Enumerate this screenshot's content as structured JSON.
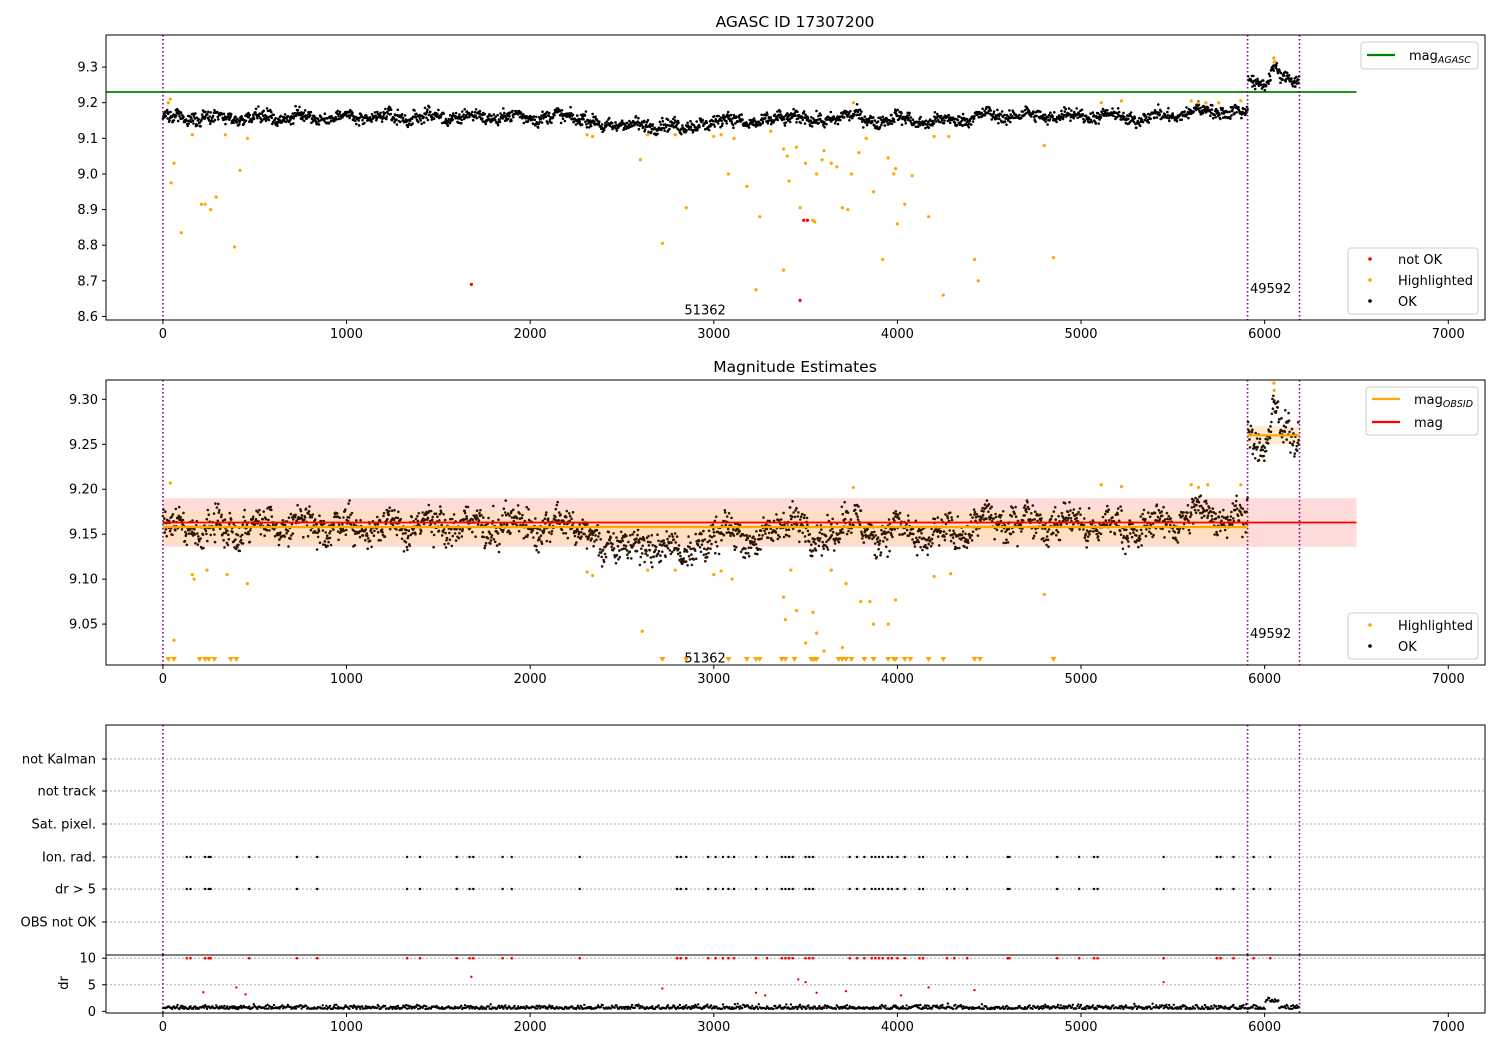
{
  "figure_title": "AGASC ID 17307200",
  "colors": {
    "ok": "#000000",
    "highlighted": "#ffa500",
    "not_ok": "#ff0000",
    "mag_agasc_line": "#008000",
    "mag_obsid_line": "#ffa500",
    "mag_line": "#ff0000",
    "obs_boundary": "#800080",
    "band_red": "#ffb0b0",
    "band_orange": "#ffe0b0"
  },
  "chart_data": [
    {
      "type": "scatter",
      "title": "AGASC ID 17307200",
      "xlim": [
        -310,
        7200
      ],
      "ylim": [
        8.59,
        9.39
      ],
      "xticks": [
        0,
        1000,
        2000,
        3000,
        4000,
        5000,
        6000,
        7000
      ],
      "yticks": [
        8.6,
        8.7,
        8.8,
        8.9,
        9.0,
        9.1,
        9.2,
        9.3
      ],
      "ytick_labels": [
        "8.6",
        "8.7",
        "8.8",
        "8.9",
        "9.0",
        "9.1",
        "9.2",
        "9.3"
      ],
      "obs_boundaries": [
        0,
        5907,
        6190
      ],
      "obs_labels": [
        {
          "text": "51362",
          "x": 2840,
          "y": 8.62
        },
        {
          "text": "49592",
          "x": 5920,
          "y": 8.68
        }
      ],
      "mag_agasc": 9.23,
      "mag_agasc_range": [
        0,
        6500
      ],
      "legends": [
        {
          "position": "top-right",
          "entries": [
            {
              "label": "mag",
              "subscript": "AGASC",
              "marker": "line",
              "color": "#008000"
            }
          ]
        },
        {
          "position": "bottom-right",
          "entries": [
            {
              "label": "not OK",
              "marker": "dot",
              "color": "#ff0000"
            },
            {
              "label": "Highlighted",
              "marker": "dot",
              "color": "#ffa500"
            },
            {
              "label": "OK",
              "marker": "dot",
              "color": "#000000"
            }
          ]
        }
      ],
      "ok_trend": [
        [
          0,
          9.16
        ],
        [
          250,
          9.158
        ],
        [
          600,
          9.16
        ],
        [
          1100,
          9.158
        ],
        [
          1600,
          9.16
        ],
        [
          2000,
          9.16
        ],
        [
          2300,
          9.16
        ],
        [
          2400,
          9.125
        ],
        [
          2500,
          9.148
        ],
        [
          2650,
          9.125
        ],
        [
          2750,
          9.15
        ],
        [
          2840,
          9.12
        ],
        [
          2950,
          9.148
        ],
        [
          3100,
          9.15
        ],
        [
          3300,
          9.145
        ],
        [
          3450,
          9.17
        ],
        [
          3550,
          9.14
        ],
        [
          3700,
          9.168
        ],
        [
          3850,
          9.15
        ],
        [
          4000,
          9.155
        ],
        [
          4200,
          9.145
        ],
        [
          4500,
          9.165
        ],
        [
          4900,
          9.163
        ],
        [
          5100,
          9.165
        ],
        [
          5300,
          9.155
        ],
        [
          5500,
          9.165
        ],
        [
          5700,
          9.18
        ],
        [
          5907,
          9.168
        ],
        [
          5910,
          9.265
        ],
        [
          6000,
          9.255
        ],
        [
          6050,
          9.3
        ],
        [
          6100,
          9.262
        ],
        [
          6190,
          9.265
        ]
      ],
      "highlighted_points": [
        [
          30,
          9.2
        ],
        [
          40,
          9.21
        ],
        [
          45,
          8.975
        ],
        [
          60,
          9.03
        ],
        [
          100,
          8.835
        ],
        [
          160,
          9.11
        ],
        [
          210,
          8.915
        ],
        [
          230,
          8.915
        ],
        [
          260,
          8.9
        ],
        [
          290,
          8.935
        ],
        [
          340,
          9.11
        ],
        [
          390,
          8.795
        ],
        [
          420,
          9.01
        ],
        [
          460,
          9.1
        ],
        [
          2310,
          9.11
        ],
        [
          2340,
          9.105
        ],
        [
          2600,
          9.04
        ],
        [
          2640,
          9.11
        ],
        [
          2720,
          8.805
        ],
        [
          2790,
          9.11
        ],
        [
          2850,
          8.905
        ],
        [
          3000,
          9.105
        ],
        [
          3040,
          9.11
        ],
        [
          3080,
          9.0
        ],
        [
          3110,
          9.1
        ],
        [
          3180,
          8.965
        ],
        [
          3250,
          8.88
        ],
        [
          3230,
          8.675
        ],
        [
          3310,
          9.12
        ],
        [
          3380,
          9.07
        ],
        [
          3400,
          9.05
        ],
        [
          3380,
          8.73
        ],
        [
          3410,
          8.98
        ],
        [
          3450,
          9.075
        ],
        [
          3470,
          8.905
        ],
        [
          3500,
          9.03
        ],
        [
          3540,
          8.87
        ],
        [
          3550,
          8.865
        ],
        [
          3560,
          9.0
        ],
        [
          3590,
          9.04
        ],
        [
          3600,
          9.065
        ],
        [
          3640,
          9.03
        ],
        [
          3670,
          9.02
        ],
        [
          3700,
          8.905
        ],
        [
          3730,
          8.9
        ],
        [
          3750,
          9.0
        ],
        [
          3760,
          9.2
        ],
        [
          3790,
          9.06
        ],
        [
          3830,
          9.1
        ],
        [
          3870,
          8.95
        ],
        [
          3920,
          8.76
        ],
        [
          3950,
          9.045
        ],
        [
          3980,
          9.0
        ],
        [
          3990,
          9.015
        ],
        [
          4000,
          8.86
        ],
        [
          4040,
          8.915
        ],
        [
          4080,
          8.995
        ],
        [
          4170,
          8.88
        ],
        [
          4200,
          9.105
        ],
        [
          4250,
          8.66
        ],
        [
          4280,
          9.105
        ],
        [
          4420,
          8.76
        ],
        [
          4440,
          8.7
        ],
        [
          4800,
          9.08
        ],
        [
          4850,
          8.765
        ],
        [
          5110,
          9.2
        ],
        [
          5220,
          9.205
        ],
        [
          5600,
          9.205
        ],
        [
          5640,
          9.2
        ],
        [
          5680,
          9.2
        ],
        [
          5750,
          9.2
        ],
        [
          5870,
          9.205
        ],
        [
          6050,
          9.325
        ],
        [
          6055,
          9.315
        ]
      ],
      "not_ok_points": [
        [
          1680,
          8.69
        ],
        [
          3470,
          8.645
        ],
        [
          3490,
          8.87
        ],
        [
          3510,
          8.87
        ]
      ]
    },
    {
      "type": "scatter",
      "title": "Magnitude Estimates",
      "xlim": [
        -310,
        7200
      ],
      "ylim": [
        9.0045,
        9.3215
      ],
      "xticks": [
        0,
        1000,
        2000,
        3000,
        4000,
        5000,
        6000,
        7000
      ],
      "yticks": [
        9.05,
        9.1,
        9.15,
        9.2,
        9.25,
        9.3
      ],
      "ytick_labels": [
        "9.05",
        "9.10",
        "9.15",
        "9.20",
        "9.25",
        "9.30"
      ],
      "obs_boundaries": [
        0,
        5907,
        6190
      ],
      "obs_labels": [
        {
          "text": "51362",
          "x": 2840,
          "y": 9.013
        },
        {
          "text": "49592",
          "x": 5920,
          "y": 9.04
        }
      ],
      "mag": 9.163,
      "mag_band": [
        9.136,
        9.19
      ],
      "mag_range": [
        0,
        6500
      ],
      "mag_obsid": [
        {
          "x0": 0,
          "x1": 5907,
          "value": 9.158,
          "band": [
            9.14,
            9.176
          ]
        },
        {
          "x0": 5907,
          "x1": 6190,
          "value": 9.26,
          "band": [
            9.25,
            9.27
          ]
        }
      ],
      "legends": [
        {
          "position": "top-right",
          "entries": [
            {
              "label": "mag",
              "subscript": "OBSID",
              "marker": "line",
              "color": "#ffa500"
            },
            {
              "label": "mag",
              "marker": "line",
              "color": "#ff0000"
            }
          ]
        },
        {
          "position": "bottom-right",
          "entries": [
            {
              "label": "Highlighted",
              "marker": "dot",
              "color": "#ffa500"
            },
            {
              "label": "OK",
              "marker": "dot",
              "color": "#000000"
            }
          ]
        }
      ],
      "ok_trend": [
        [
          0,
          9.16
        ],
        [
          250,
          9.155
        ],
        [
          600,
          9.16
        ],
        [
          1100,
          9.158
        ],
        [
          1600,
          9.16
        ],
        [
          2000,
          9.16
        ],
        [
          2300,
          9.16
        ],
        [
          2400,
          9.125
        ],
        [
          2500,
          9.148
        ],
        [
          2650,
          9.125
        ],
        [
          2750,
          9.15
        ],
        [
          2840,
          9.118
        ],
        [
          2950,
          9.148
        ],
        [
          3100,
          9.15
        ],
        [
          3300,
          9.145
        ],
        [
          3450,
          9.175
        ],
        [
          3550,
          9.135
        ],
        [
          3700,
          9.168
        ],
        [
          3850,
          9.15
        ],
        [
          4000,
          9.155
        ],
        [
          4200,
          9.145
        ],
        [
          4500,
          9.165
        ],
        [
          4900,
          9.163
        ],
        [
          5100,
          9.16
        ],
        [
          5300,
          9.155
        ],
        [
          5500,
          9.165
        ],
        [
          5700,
          9.175
        ],
        [
          5907,
          9.165
        ],
        [
          5910,
          9.26
        ],
        [
          6000,
          9.245
        ],
        [
          6050,
          9.295
        ],
        [
          6100,
          9.255
        ],
        [
          6190,
          9.26
        ]
      ],
      "highlighted_points": [
        [
          40,
          9.207
        ],
        [
          60,
          9.032
        ],
        [
          160,
          9.105
        ],
        [
          170,
          9.1
        ],
        [
          240,
          9.11
        ],
        [
          350,
          9.105
        ],
        [
          460,
          9.095
        ],
        [
          2310,
          9.108
        ],
        [
          2340,
          9.104
        ],
        [
          2610,
          9.042
        ],
        [
          2640,
          9.11
        ],
        [
          2790,
          9.11
        ],
        [
          3000,
          9.105
        ],
        [
          3040,
          9.109
        ],
        [
          3100,
          9.1
        ],
        [
          3380,
          9.08
        ],
        [
          3390,
          9.055
        ],
        [
          3420,
          9.11
        ],
        [
          3450,
          9.065
        ],
        [
          3500,
          9.029
        ],
        [
          3540,
          9.063
        ],
        [
          3560,
          9.04
        ],
        [
          3600,
          9.02
        ],
        [
          3640,
          9.11
        ],
        [
          3700,
          9.024
        ],
        [
          3720,
          9.095
        ],
        [
          3760,
          9.202
        ],
        [
          3800,
          9.075
        ],
        [
          3850,
          9.075
        ],
        [
          3870,
          9.05
        ],
        [
          3950,
          9.05
        ],
        [
          3990,
          9.077
        ],
        [
          4200,
          9.103
        ],
        [
          4290,
          9.106
        ],
        [
          4800,
          9.083
        ],
        [
          5110,
          9.205
        ],
        [
          5220,
          9.203
        ],
        [
          5600,
          9.205
        ],
        [
          5640,
          9.202
        ],
        [
          5690,
          9.205
        ],
        [
          5870,
          9.205
        ],
        [
          6050,
          9.318
        ],
        [
          6052,
          9.31
        ]
      ],
      "clipped_points_x": [
        30,
        60,
        200,
        230,
        250,
        280,
        370,
        400,
        2720,
        2850,
        3080,
        3180,
        3230,
        3250,
        3370,
        3390,
        3440,
        3530,
        3540,
        3550,
        3560,
        3680,
        3700,
        3720,
        3750,
        3820,
        3870,
        3950,
        3980,
        3990,
        4040,
        4070,
        4170,
        4250,
        4420,
        4450,
        4850
      ]
    },
    {
      "type": "scatter",
      "title": "",
      "xlim": [
        -310,
        7200
      ],
      "obs_boundaries": [
        0,
        5907,
        6190
      ],
      "flag_rows": [
        "not Kalman",
        "not track",
        "Sat. pixel.",
        "Ion. rad.",
        "dr > 5",
        "OBS not OK"
      ],
      "flag_events_x": [
        130,
        150,
        230,
        250,
        260,
        470,
        730,
        840,
        1330,
        1400,
        1600,
        1670,
        1690,
        1850,
        1900,
        2270,
        2800,
        2820,
        2850,
        2970,
        3010,
        3050,
        3080,
        3110,
        3230,
        3290,
        3370,
        3390,
        3410,
        3430,
        3500,
        3520,
        3540,
        3740,
        3780,
        3820,
        3860,
        3880,
        3900,
        3920,
        3950,
        3970,
        4000,
        4040,
        4120,
        4140,
        4270,
        4310,
        4380,
        4600,
        4610,
        4870,
        4990,
        5070,
        5090,
        5450,
        5740,
        5760,
        5830,
        5940,
        6030
      ],
      "dr_ylim": [
        -0.3,
        10.6
      ],
      "dr_yticks": [
        0,
        5,
        10
      ],
      "dr_ylabel": "dr",
      "dr_clip": 10,
      "dr_high_points": [
        [
          220,
          3.6
        ],
        [
          400,
          4.5
        ],
        [
          450,
          3.2
        ],
        [
          1680,
          6.5
        ],
        [
          2720,
          4.3
        ],
        [
          3230,
          3.5
        ],
        [
          3280,
          3.0
        ],
        [
          3460,
          6.0
        ],
        [
          3500,
          5.5
        ],
        [
          3560,
          3.5
        ],
        [
          3720,
          3.8
        ],
        [
          4020,
          3.0
        ],
        [
          4170,
          4.5
        ],
        [
          4420,
          4.0
        ],
        [
          5450,
          5.5
        ]
      ]
    }
  ]
}
